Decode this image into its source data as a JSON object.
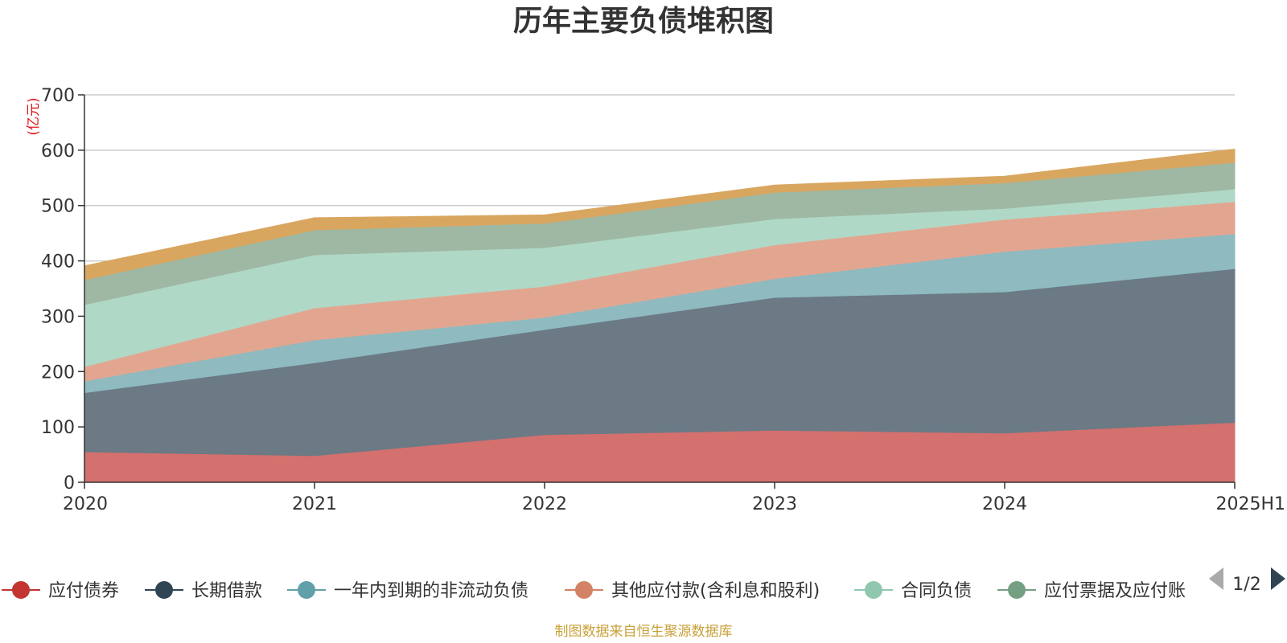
{
  "chart_data": {
    "type": "area",
    "stacked": true,
    "title": "历年主要负债堆积图",
    "unit_label": "(亿元)",
    "x": [
      "2020",
      "2021",
      "2022",
      "2023",
      "2024",
      "2025H1"
    ],
    "ylim": [
      0,
      700
    ],
    "yticks": [
      0,
      100,
      200,
      300,
      400,
      500,
      600,
      700
    ],
    "grid": true,
    "legend_position": "bottom",
    "series": [
      {
        "name": "应付债券",
        "color": "#d4706e",
        "values": [
          55,
          48,
          86,
          94,
          89,
          108
        ]
      },
      {
        "name": "长期借款",
        "color": "#6b7a85",
        "values": [
          107,
          168,
          190,
          240,
          255,
          278
        ]
      },
      {
        "name": "一年内到期的非流动负债",
        "color": "#8ebac0",
        "values": [
          21,
          41,
          22,
          34,
          73,
          63
        ]
      },
      {
        "name": "其他应付款(含利息和股利)",
        "color": "#e2a690",
        "values": [
          26,
          58,
          56,
          61,
          58,
          58
        ]
      },
      {
        "name": "合同负债",
        "color": "#b0d8c6",
        "values": [
          112,
          96,
          70,
          47,
          20,
          23
        ]
      },
      {
        "name": "应付票据及应付账款",
        "color": "#9fb8a3",
        "values": [
          45,
          45,
          44,
          48,
          46,
          48
        ]
      },
      {
        "name": "",
        "color": "#d9a660",
        "values": [
          25,
          22,
          15,
          13,
          12,
          24
        ]
      }
    ]
  },
  "legend": {
    "items": [
      {
        "label": "应付债券",
        "color": "#c23531"
      },
      {
        "label": "长期借款",
        "color": "#2f4554"
      },
      {
        "label": "一年内到期的非流动负债",
        "color": "#61a0a8"
      },
      {
        "label": "其他应付款(含利息和股利)",
        "color": "#d48265"
      },
      {
        "label": "合同负债",
        "color": "#91c7ae"
      },
      {
        "label": "应付票据及应付账",
        "color": "#749f83"
      }
    ],
    "page_indicator": "1/2"
  },
  "source_note": "制图数据来自恒生聚源数据库"
}
